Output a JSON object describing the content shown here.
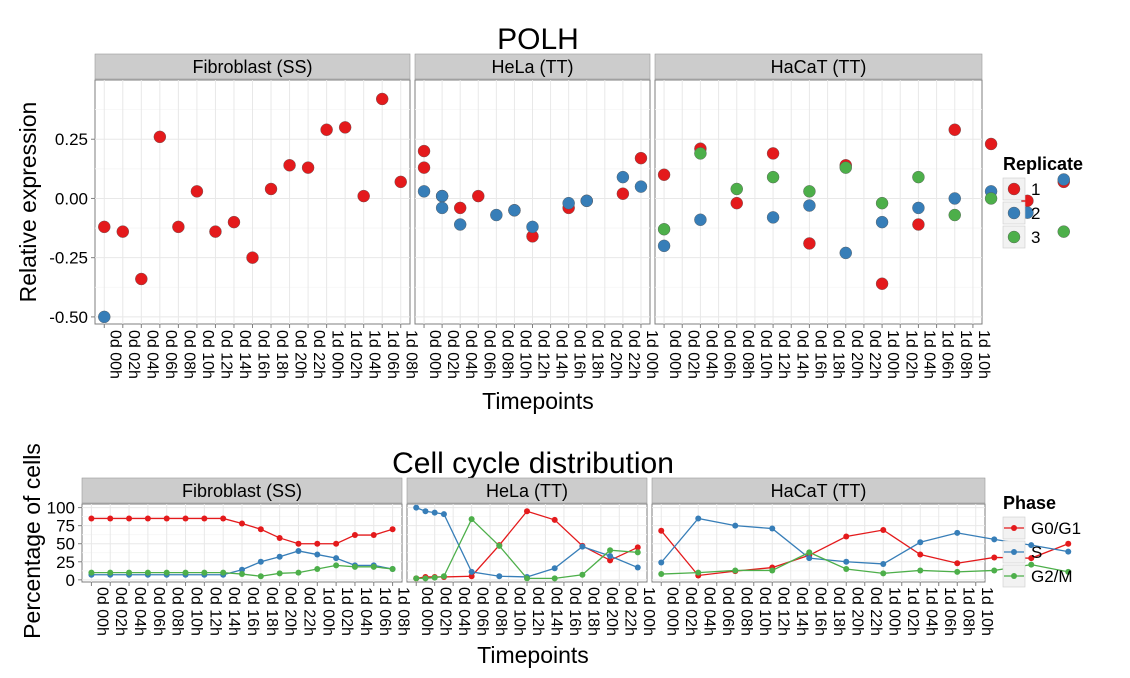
{
  "top": {
    "title": "POLH",
    "xlabel": "Timepoints",
    "ylabel": "Relative expression",
    "legend": {
      "title": "Replicate",
      "entries": [
        "1",
        "2",
        "3"
      ]
    }
  },
  "bottom": {
    "title": "Cell cycle distribution",
    "xlabel": "Timepoints",
    "ylabel": "Percentage of cells",
    "legend": {
      "title": "Phase",
      "entries": [
        "G0/G1",
        "S",
        "G2/M"
      ]
    }
  },
  "colors": {
    "red": "#E41A1C",
    "blue": "#377EB8",
    "green": "#4DAF4A",
    "strip": "#CCCCCC",
    "grid": "#F0F0F0"
  },
  "chart_data": [
    {
      "type": "scatter",
      "title": "POLH",
      "xlabel": "Timepoints",
      "ylabel": "Relative expression",
      "ylim": [
        -0.53,
        0.5
      ],
      "yticks": [
        -0.5,
        -0.25,
        0,
        0.25
      ],
      "yticklabels": [
        "-0.50",
        "-0.25",
        "0.00",
        "0.25"
      ],
      "legend_title": "Replicate",
      "legend_position": "right",
      "grid": true,
      "facets": [
        {
          "name": "Fibroblast (SS)",
          "x": [
            "0d 00h",
            "0d 02h",
            "0d 04h",
            "0d 06h",
            "0d 08h",
            "0d 10h",
            "0d 12h",
            "0d 14h",
            "0d 16h",
            "0d 18h",
            "0d 20h",
            "0d 22h",
            "1d 00h",
            "1d 02h",
            "1d 04h",
            "1d 06h",
            "1d 08h"
          ],
          "series": [
            {
              "name": "1",
              "values": [
                -0.12,
                -0.14,
                -0.34,
                0.26,
                -0.12,
                0.03,
                -0.14,
                -0.1,
                -0.25,
                0.04,
                0.14,
                0.13,
                0.29,
                0.3,
                0.01,
                0.42,
                0.07
              ]
            },
            {
              "name": "2",
              "values": [
                -0.5,
                null,
                null,
                null,
                null,
                null,
                null,
                null,
                null,
                null,
                null,
                null,
                null,
                null,
                null,
                null,
                null
              ]
            }
          ]
        },
        {
          "name": "HeLa (TT)",
          "x": [
            "0d 00h",
            "0d 02h",
            "0d 04h",
            "0d 06h",
            "0d 08h",
            "0d 10h",
            "0d 12h",
            "0d 14h",
            "0d 16h",
            "0d 18h",
            "0d 20h",
            "0d 22h",
            "1d 00h"
          ],
          "series": [
            {
              "name": "1",
              "values": [
                0.13,
                0.01,
                -0.04,
                0.01,
                -0.05,
                -0.16,
                -0.04,
                -0.01,
                0.02,
                0.17
              ],
              "x": [
                "0d 00h",
                "0d 02h",
                "0d 04h",
                "0d 06h",
                "0d 10h",
                "0d 12h",
                "0d 16h",
                "0d 18h",
                "0d 22h",
                "1d 00h"
              ]
            },
            {
              "name": "1",
              "values": [
                0.2
              ],
              "x": [
                "0d 00h"
              ]
            },
            {
              "name": "2",
              "values": [
                0.03,
                -0.11,
                -0.07,
                -0.05,
                -0.12,
                -0.02,
                -0.01,
                0.09,
                0.05
              ],
              "x": [
                "0d 00h",
                "0d 04h",
                "0d 08h",
                "0d 10h",
                "0d 12h",
                "0d 16h",
                "0d 18h",
                "0d 22h",
                "1d 00h"
              ]
            },
            {
              "name": "2",
              "values": [
                0.01,
                -0.04
              ],
              "x": [
                "0d 02h",
                "0d 02h"
              ]
            }
          ]
        },
        {
          "name": "HaCaT (TT)",
          "x": [
            "0d 00h",
            "0d 02h",
            "0d 04h",
            "0d 06h",
            "0d 08h",
            "0d 10h",
            "0d 12h",
            "0d 14h",
            "0d 16h",
            "0d 18h",
            "0d 20h",
            "0d 22h",
            "1d 00h",
            "1d 02h",
            "1d 04h",
            "1d 06h",
            "1d 08h",
            "1d 10h"
          ],
          "series": [
            {
              "name": "1",
              "values": [
                0.1,
                0.21,
                -0.02,
                0.19,
                -0.19,
                0.14,
                -0.36,
                -0.11,
                0.29,
                0.23,
                -0.01,
                0.07
              ],
              "x": [
                "0d 00h",
                "0d 04h",
                "0d 08h",
                "0d 12h",
                "0d 16h",
                "0d 20h",
                "1d 00h",
                "1d 04h",
                "1d 08h",
                "1d 12h",
                "1d 16h",
                "1d 20h"
              ]
            },
            {
              "name": "2",
              "values": [
                -0.2,
                -0.09,
                -0.08,
                -0.03,
                -0.23,
                -0.1,
                -0.04,
                0.0,
                0.03,
                -0.06,
                0.08
              ],
              "x": [
                "0d 00h",
                "0d 04h",
                "0d 12h",
                "0d 16h",
                "0d 20h",
                "1d 00h",
                "1d 04h",
                "1d 08h",
                "1d 12h",
                "1d 16h",
                "1d 20h"
              ]
            },
            {
              "name": "3",
              "values": [
                -0.13,
                0.19,
                0.04,
                0.09,
                0.03,
                0.13,
                -0.02,
                0.09,
                -0.07,
                0.0,
                -0.14
              ],
              "x": [
                "0d 00h",
                "0d 04h",
                "0d 08h",
                "0d 12h",
                "0d 16h",
                "0d 20h",
                "1d 00h",
                "1d 04h",
                "1d 08h",
                "1d 12h",
                "1d 20h"
              ]
            }
          ]
        }
      ]
    },
    {
      "type": "line",
      "title": "Cell cycle distribution",
      "xlabel": "Timepoints",
      "ylabel": "Percentage of cells",
      "ylim": [
        -3,
        105
      ],
      "yticks": [
        0,
        25,
        50,
        75,
        100
      ],
      "yticklabels": [
        "0",
        "25",
        "50",
        "75",
        "100"
      ],
      "legend_title": "Phase",
      "legend_position": "right",
      "grid": true,
      "facets": [
        {
          "name": "Fibroblast (SS)",
          "x": [
            "0d 00h",
            "0d 02h",
            "0d 04h",
            "0d 06h",
            "0d 08h",
            "0d 10h",
            "0d 12h",
            "0d 14h",
            "0d 16h",
            "0d 18h",
            "0d 20h",
            "0d 22h",
            "1d 00h",
            "1d 02h",
            "1d 04h",
            "1d 06h",
            "1d 08h"
          ],
          "series": [
            {
              "name": "G0/G1",
              "values": [
                85,
                85,
                85,
                85,
                85,
                85,
                85,
                85,
                78,
                70,
                58,
                50,
                50,
                50,
                62,
                62,
                70
              ]
            },
            {
              "name": "S",
              "values": [
                7,
                7,
                7,
                7,
                7,
                7,
                7,
                7,
                14,
                25,
                32,
                40,
                35,
                30,
                20,
                20,
                15
              ]
            },
            {
              "name": "G2/M",
              "values": [
                10,
                10,
                10,
                10,
                10,
                10,
                10,
                10,
                8,
                5,
                9,
                10,
                15,
                20,
                18,
                18,
                15
              ]
            }
          ]
        },
        {
          "name": "HeLa (TT)",
          "x": [
            "0d 00h",
            "0d 02h",
            "0d 04h",
            "0d 06h",
            "0d 08h",
            "0d 10h",
            "0d 12h",
            "0d 14h",
            "0d 16h",
            "0d 18h",
            "0d 20h",
            "0d 22h",
            "1d 00h"
          ],
          "series": [
            {
              "name": "G0/G1",
              "x": [
                "0d 00h",
                "0d 01h",
                "0d 02h",
                "0d 03h",
                "0d 06h",
                "0d 09h",
                "0d 12h",
                "0d 15h",
                "0d 18h",
                "0d 21h",
                "1d 00h"
              ],
              "values": [
                2,
                4,
                4,
                4,
                5,
                48,
                95,
                83,
                47,
                27,
                45
              ]
            },
            {
              "name": "S",
              "x": [
                "0d 00h",
                "0d 01h",
                "0d 02h",
                "0d 03h",
                "0d 06h",
                "0d 09h",
                "0d 12h",
                "0d 15h",
                "0d 18h",
                "0d 21h",
                "1d 00h"
              ],
              "values": [
                100,
                95,
                93,
                91,
                11,
                5,
                4,
                16,
                46,
                33,
                17
              ]
            },
            {
              "name": "G2/M",
              "x": [
                "0d 00h",
                "0d 01h",
                "0d 02h",
                "0d 03h",
                "0d 06h",
                "0d 09h",
                "0d 12h",
                "0d 15h",
                "0d 18h",
                "0d 21h",
                "1d 00h"
              ],
              "values": [
                2,
                2,
                3,
                5,
                84,
                47,
                2,
                2,
                7,
                41,
                38
              ]
            }
          ]
        },
        {
          "name": "HaCaT (TT)",
          "x": [
            "0d 00h",
            "0d 02h",
            "0d 04h",
            "0d 06h",
            "0d 08h",
            "0d 10h",
            "0d 12h",
            "0d 14h",
            "0d 16h",
            "0d 18h",
            "0d 20h",
            "0d 22h",
            "1d 00h",
            "1d 02h",
            "1d 04h",
            "1d 06h",
            "1d 08h",
            "1d 10h"
          ],
          "series": [
            {
              "name": "G0/G1",
              "x": [
                "0d 00h",
                "0d 04h",
                "0d 08h",
                "0d 12h",
                "0d 16h",
                "0d 20h",
                "1d 00h",
                "1d 04h",
                "1d 08h",
                "1d 12h",
                "1d 16h",
                "1d 20h"
              ],
              "values": [
                68,
                6,
                12,
                17,
                34,
                60,
                69,
                35,
                23,
                31,
                30,
                50
              ]
            },
            {
              "name": "S",
              "x": [
                "0d 00h",
                "0d 04h",
                "0d 08h",
                "0d 12h",
                "0d 16h",
                "0d 20h",
                "1d 00h",
                "1d 04h",
                "1d 08h",
                "1d 12h",
                "1d 16h",
                "1d 20h"
              ],
              "values": [
                24,
                85,
                75,
                71,
                30,
                25,
                22,
                52,
                65,
                56,
                48,
                39
              ]
            },
            {
              "name": "G2/M",
              "x": [
                "0d 00h",
                "0d 04h",
                "0d 08h",
                "0d 12h",
                "0d 16h",
                "0d 20h",
                "1d 00h",
                "1d 04h",
                "1d 08h",
                "1d 12h",
                "1d 16h",
                "1d 20h"
              ],
              "values": [
                8,
                10,
                13,
                13,
                38,
                15,
                9,
                13,
                11,
                13,
                21,
                11
              ]
            }
          ]
        }
      ]
    }
  ]
}
